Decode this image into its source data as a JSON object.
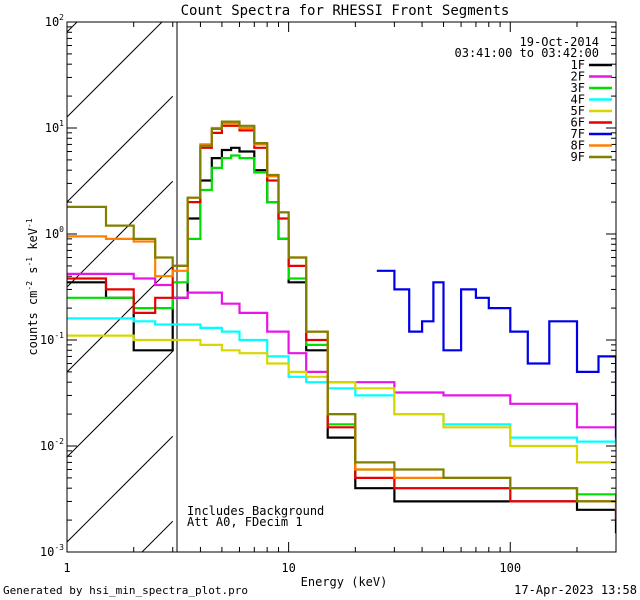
{
  "chart_data": {
    "type": "line",
    "title": "Count Spectra for RHESSI Front Segments",
    "xlabel": "Energy (keV)",
    "ylabel_parts": {
      "base": "counts cm",
      "exp1": "-2",
      "mid": " s",
      "exp2": "-1",
      "tail": " keV",
      "exp3": "-1"
    },
    "xscale": "log",
    "yscale": "log",
    "xlim": [
      1,
      300
    ],
    "ylim": [
      0.001,
      100
    ],
    "xticks": [
      {
        "value": 1,
        "label": "1"
      },
      {
        "value": 10,
        "label": "10"
      },
      {
        "value": 100,
        "label": "100"
      }
    ],
    "yticks": [
      {
        "value": 100,
        "base": "10",
        "exp": "2"
      },
      {
        "value": 10,
        "base": "10",
        "exp": "1"
      },
      {
        "value": 1,
        "base": "10",
        "exp": "0"
      },
      {
        "value": 0.1,
        "base": "10",
        "exp": "-1"
      },
      {
        "value": 0.01,
        "base": "10",
        "exp": "-2"
      },
      {
        "value": 0.001,
        "base": "10",
        "exp": "-3"
      }
    ],
    "shaded_region": {
      "x_range": [
        1,
        3
      ],
      "style": "diagonal-hatch"
    },
    "legend": {
      "placement": "top-right",
      "date": "19-Oct-2014",
      "time_range": "03:41:00 to 03:42:00"
    },
    "annotations": [
      "Includes Background",
      "Att A0, FDecim 1"
    ],
    "series": [
      {
        "name": "1F",
        "color": "#000000",
        "x": [
          1,
          1.5,
          2,
          2.5,
          3,
          3.5,
          4,
          4.5,
          5,
          5.5,
          6,
          7,
          8,
          9,
          10,
          12,
          15,
          20,
          30,
          50,
          100,
          200,
          300
        ],
        "y": [
          0.35,
          0.25,
          0.08,
          0.08,
          0.25,
          1.4,
          3.2,
          5.2,
          6.2,
          6.5,
          6.0,
          4.0,
          2.0,
          0.9,
          0.35,
          0.08,
          0.012,
          0.004,
          0.003,
          0.003,
          0.003,
          0.0025,
          0.0015
        ]
      },
      {
        "name": "2F",
        "color": "#e815e8",
        "x": [
          1,
          1.5,
          2,
          2.5,
          3,
          3.5,
          4,
          5,
          6,
          8,
          10,
          12,
          15,
          20,
          30,
          50,
          100,
          200,
          300
        ],
        "y": [
          0.42,
          0.42,
          0.38,
          0.33,
          0.25,
          0.28,
          0.28,
          0.22,
          0.18,
          0.12,
          0.075,
          0.05,
          0.04,
          0.04,
          0.032,
          0.03,
          0.025,
          0.015,
          0.01
        ]
      },
      {
        "name": "3F",
        "color": "#00e000",
        "x": [
          1,
          1.5,
          2,
          2.5,
          3,
          3.5,
          4,
          4.5,
          5,
          5.5,
          6,
          7,
          8,
          9,
          10,
          12,
          15,
          20,
          30,
          50,
          100,
          200,
          300
        ],
        "y": [
          0.25,
          0.25,
          0.2,
          0.2,
          0.35,
          0.9,
          2.6,
          4.2,
          5.2,
          5.5,
          5.2,
          3.8,
          2.0,
          0.9,
          0.38,
          0.09,
          0.016,
          0.006,
          0.004,
          0.004,
          0.004,
          0.0035,
          0.003
        ]
      },
      {
        "name": "4F",
        "color": "#00ffff",
        "x": [
          1,
          1.5,
          2,
          2.5,
          3,
          3.5,
          4,
          5,
          6,
          8,
          10,
          12,
          15,
          20,
          30,
          50,
          100,
          200,
          300
        ],
        "y": [
          0.16,
          0.16,
          0.15,
          0.14,
          0.14,
          0.14,
          0.13,
          0.12,
          0.1,
          0.07,
          0.045,
          0.04,
          0.035,
          0.03,
          0.02,
          0.016,
          0.012,
          0.011,
          0.01
        ]
      },
      {
        "name": "5F",
        "color": "#d7d700",
        "x": [
          1,
          1.5,
          2,
          2.5,
          3,
          3.5,
          4,
          5,
          6,
          8,
          10,
          12,
          15,
          20,
          30,
          50,
          100,
          200,
          300
        ],
        "y": [
          0.11,
          0.11,
          0.1,
          0.1,
          0.1,
          0.1,
          0.09,
          0.08,
          0.075,
          0.06,
          0.05,
          0.045,
          0.04,
          0.035,
          0.02,
          0.015,
          0.01,
          0.007,
          0.007
        ]
      },
      {
        "name": "6F",
        "color": "#e80000",
        "x": [
          1,
          1.5,
          2,
          2.5,
          3,
          3.5,
          4,
          4.5,
          5,
          5.5,
          6,
          7,
          8,
          9,
          10,
          12,
          15,
          20,
          30,
          50,
          100,
          200,
          300
        ],
        "y": [
          0.38,
          0.3,
          0.18,
          0.25,
          0.5,
          2.0,
          6.5,
          9.0,
          10.5,
          10.5,
          9.5,
          6.5,
          3.2,
          1.4,
          0.5,
          0.1,
          0.015,
          0.005,
          0.004,
          0.004,
          0.003,
          0.003,
          0.002
        ]
      },
      {
        "name": "7F",
        "color": "#0000e8",
        "x": [
          25,
          30,
          35,
          40,
          45,
          50,
          60,
          70,
          80,
          100,
          120,
          150,
          200,
          250,
          300
        ],
        "y": [
          0.45,
          0.3,
          0.12,
          0.15,
          0.35,
          0.08,
          0.3,
          0.25,
          0.2,
          0.12,
          0.06,
          0.15,
          0.05,
          0.07,
          0.012
        ]
      },
      {
        "name": "8F",
        "color": "#ff8000",
        "x": [
          1,
          1.5,
          2,
          2.5,
          3,
          3.5,
          4,
          4.5,
          5,
          5.5,
          6,
          7,
          8,
          9,
          10,
          12,
          15,
          20,
          30,
          50,
          100,
          200,
          300
        ],
        "y": [
          0.95,
          0.9,
          0.85,
          0.4,
          0.45,
          2.2,
          7.0,
          10.0,
          11.0,
          11.0,
          10.0,
          7.0,
          3.5,
          1.6,
          0.6,
          0.12,
          0.02,
          0.006,
          0.005,
          0.005,
          0.004,
          0.003,
          0.0025
        ]
      },
      {
        "name": "9F",
        "color": "#808000",
        "x": [
          1,
          1.5,
          2,
          2.5,
          3,
          3.5,
          4,
          4.5,
          5,
          5.5,
          6,
          7,
          8,
          9,
          10,
          12,
          15,
          20,
          30,
          50,
          100,
          200,
          300
        ],
        "y": [
          1.8,
          1.2,
          0.9,
          0.6,
          0.5,
          2.2,
          6.8,
          9.8,
          11.5,
          11.5,
          10.5,
          7.2,
          3.6,
          1.6,
          0.6,
          0.12,
          0.02,
          0.007,
          0.006,
          0.005,
          0.004,
          0.003,
          0.003
        ]
      }
    ]
  },
  "footer": {
    "generator": "Generated by hsi_min_spectra_plot.pro",
    "timestamp": "17-Apr-2023 13:58"
  }
}
